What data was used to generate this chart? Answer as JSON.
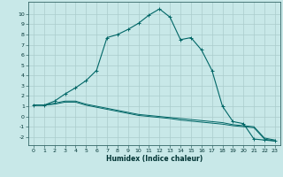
{
  "xlabel": "Humidex (Indice chaleur)",
  "bg_color": "#c8e8e8",
  "grid_color": "#aacccc",
  "line_color": "#006666",
  "xlim": [
    -0.5,
    23.5
  ],
  "ylim": [
    -2.8,
    11.2
  ],
  "xticks": [
    0,
    1,
    2,
    3,
    4,
    5,
    6,
    7,
    8,
    9,
    10,
    11,
    12,
    13,
    14,
    15,
    16,
    17,
    18,
    19,
    20,
    21,
    22,
    23
  ],
  "yticks": [
    -2,
    -1,
    0,
    1,
    2,
    3,
    4,
    5,
    6,
    7,
    8,
    9,
    10
  ],
  "curve1_x": [
    0,
    1,
    2,
    3,
    4,
    5,
    6,
    7,
    8,
    9,
    10,
    11,
    12,
    13,
    14,
    15,
    16,
    17,
    18,
    19,
    20,
    21,
    22,
    23
  ],
  "curve1_y": [
    1.1,
    1.1,
    1.5,
    2.2,
    2.8,
    3.5,
    4.5,
    7.7,
    8.0,
    8.5,
    9.1,
    9.9,
    10.5,
    9.7,
    7.5,
    7.7,
    6.5,
    4.5,
    1.0,
    -0.5,
    -0.7,
    -2.2,
    -2.3,
    -2.4
  ],
  "curve2_x": [
    0,
    1,
    2,
    3,
    4,
    5,
    6,
    7,
    8,
    9,
    10,
    11,
    12,
    13,
    14,
    15,
    16,
    17,
    18,
    19,
    20,
    21,
    22,
    23
  ],
  "curve2_y": [
    1.1,
    1.1,
    1.3,
    1.5,
    1.5,
    1.2,
    1.0,
    0.8,
    0.6,
    0.4,
    0.2,
    0.1,
    0.0,
    -0.1,
    -0.2,
    -0.3,
    -0.4,
    -0.5,
    -0.6,
    -0.8,
    -0.9,
    -1.0,
    -2.1,
    -2.3
  ],
  "curve3_x": [
    0,
    1,
    2,
    3,
    4,
    5,
    6,
    7,
    8,
    9,
    10,
    11,
    12,
    13,
    14,
    15,
    16,
    17,
    18,
    19,
    20,
    21,
    22,
    23
  ],
  "curve3_y": [
    1.1,
    1.1,
    1.2,
    1.4,
    1.4,
    1.1,
    0.9,
    0.7,
    0.5,
    0.3,
    0.1,
    0.0,
    -0.1,
    -0.2,
    -0.35,
    -0.45,
    -0.55,
    -0.65,
    -0.75,
    -0.9,
    -1.0,
    -1.1,
    -2.2,
    -2.4
  ],
  "xlabel_fontsize": 5.5,
  "tick_fontsize": 4.5
}
